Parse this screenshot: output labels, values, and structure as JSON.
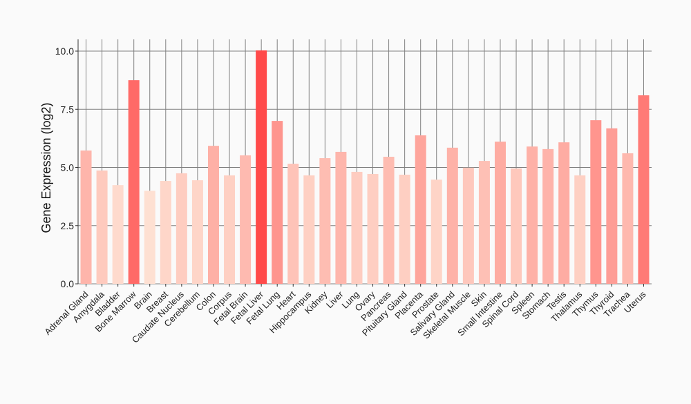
{
  "chart_data": {
    "type": "bar",
    "title": "",
    "xlabel": "",
    "ylabel": "Gene Expression (log2)",
    "ylim": [
      0,
      10.5
    ],
    "yticks": [
      "0.0",
      "2.5",
      "5.0",
      "7.5",
      "10.0"
    ],
    "grid": true,
    "categories": [
      "Adrenal Gland",
      "Amygdala",
      "Bladder",
      "Bone Marrow",
      "Brain",
      "Breast",
      "Caudate Nucleus",
      "Cerebellum",
      "Colon",
      "Corpus",
      "Fetal Brain",
      "Fetal Liver",
      "Fetal Lung",
      "Heart",
      "Hippocampus",
      "Kidney",
      "Liver",
      "Lung",
      "Ovary",
      "Pancreas",
      "Pituitary Gland",
      "Placenta",
      "Prostate",
      "Salivary Gland",
      "Skeletal Muscle",
      "Skin",
      "Small Intestine",
      "Spinal Cord",
      "Spleen",
      "Stomach",
      "Testis",
      "Thalamus",
      "Thymus",
      "Thyroid",
      "Trachea",
      "Uterus"
    ],
    "values": [
      5.73,
      4.87,
      4.24,
      8.75,
      4.0,
      4.42,
      4.75,
      4.45,
      5.93,
      4.66,
      5.52,
      10.03,
      7.0,
      5.16,
      4.66,
      5.4,
      5.67,
      4.81,
      4.72,
      5.46,
      4.69,
      6.38,
      4.48,
      5.85,
      4.99,
      5.28,
      6.11,
      4.96,
      5.9,
      5.79,
      6.08,
      4.66,
      7.03,
      6.68,
      5.61,
      8.1
    ],
    "color_low": "#fee0d2",
    "color_high": "#ff4a4a"
  }
}
